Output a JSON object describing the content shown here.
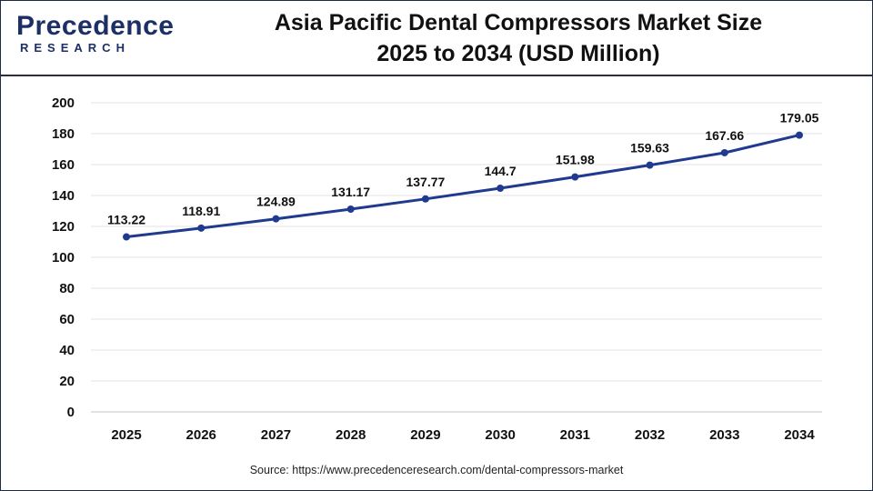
{
  "header": {
    "logo_top": "Precedence",
    "logo_bottom": "RESEARCH",
    "title_line1": "Asia Pacific Dental Compressors Market Size",
    "title_line2": "2025 to 2034 (USD Million)"
  },
  "footer": {
    "source": "Source: https://www.precedenceresearch.com/dental-compressors-market"
  },
  "colors": {
    "line": "#1f3a8f",
    "marker": "#1f3a8f",
    "grid": "#e3e3e3",
    "text": "#111111",
    "brand": "#1c2f66"
  },
  "chart_data": {
    "type": "line",
    "title": "Asia Pacific Dental Compressors Market Size 2025 to 2034 (USD Million)",
    "xlabel": "",
    "ylabel": "",
    "categories": [
      "2025",
      "2026",
      "2027",
      "2028",
      "2029",
      "2030",
      "2031",
      "2032",
      "2033",
      "2034"
    ],
    "series": [
      {
        "values": [
          113.22,
          118.91,
          124.89,
          131.17,
          137.77,
          144.7,
          151.98,
          159.63,
          167.66,
          179.05
        ],
        "labels": [
          "113.22",
          "118.91",
          "124.89",
          "131.17",
          "137.77",
          "144.7",
          "151.98",
          "159.63",
          "167.66",
          "179.05"
        ]
      }
    ],
    "ylim": [
      0,
      200
    ],
    "yticks": [
      "0",
      "20",
      "40",
      "60",
      "80",
      "100",
      "120",
      "140",
      "160",
      "180",
      "200"
    ],
    "grid": true,
    "legend": "none"
  }
}
